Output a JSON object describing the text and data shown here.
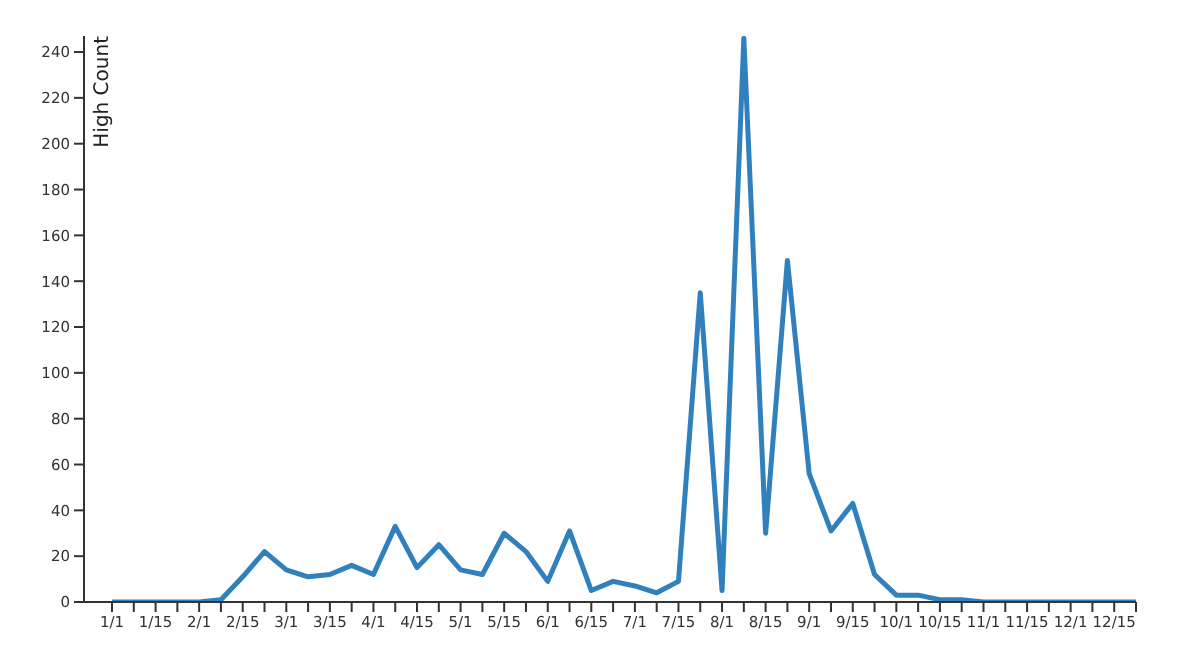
{
  "chart_data": {
    "type": "line",
    "ylabel": "High Count",
    "categories": [
      "1/1",
      null,
      "1/15",
      null,
      "2/1",
      null,
      "2/15",
      null,
      "3/1",
      null,
      "3/15",
      null,
      "4/1",
      null,
      "4/15",
      null,
      "5/1",
      null,
      "5/15",
      null,
      "6/1",
      null,
      "6/15",
      null,
      "7/1",
      null,
      "7/15",
      null,
      "8/1",
      null,
      "8/15",
      null,
      "9/1",
      null,
      "9/15",
      null,
      "10/1",
      null,
      "10/15",
      null,
      "11/1",
      null,
      "11/15",
      null,
      "12/1",
      null,
      "12/15",
      null
    ],
    "series": [
      {
        "color": "#3080bd",
        "values": [
          0,
          0,
          0,
          0,
          0,
          1,
          11,
          22,
          14,
          11,
          12,
          16,
          12,
          33,
          15,
          25,
          14,
          12,
          30,
          22,
          9,
          31,
          5,
          9,
          7,
          4,
          9,
          135,
          5,
          246,
          30,
          149,
          56,
          31,
          43,
          12,
          3,
          3,
          1,
          1,
          0,
          0,
          0,
          0,
          0,
          0,
          0,
          0
        ]
      }
    ],
    "ylim": [
      0,
      247
    ],
    "yticks": [
      0,
      20,
      40,
      60,
      80,
      100,
      120,
      140,
      160,
      180,
      200,
      220,
      240
    ],
    "grid": false,
    "legend": false,
    "marker": "none",
    "line_style": "solid"
  }
}
